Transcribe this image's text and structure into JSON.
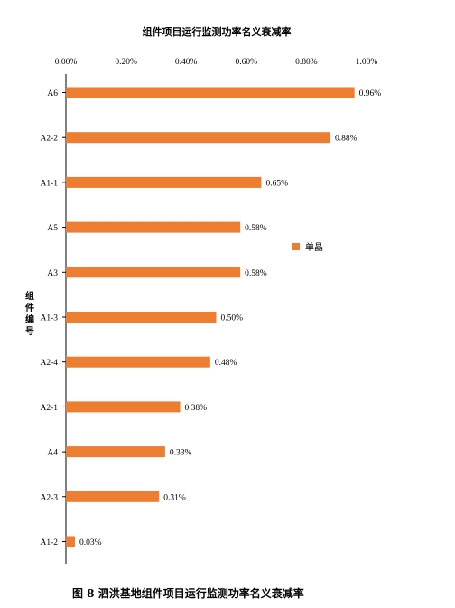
{
  "chart_data": {
    "type": "bar",
    "orientation": "horizontal",
    "title": "组件项目运行监测功率名义衰减率",
    "ylabel": "组件编号",
    "xlabel": "",
    "xlim": [
      0,
      1.0
    ],
    "x_ticks": [
      "0.00%",
      "0.20%",
      "0.40%",
      "0.60%",
      "0.80%",
      "1.00%"
    ],
    "x_axis_position": "top",
    "grid": false,
    "legend_position": "right",
    "bar_color": "#ED7D31",
    "categories": [
      "A6",
      "A2-2",
      "A1-1",
      "A5",
      "A3",
      "A1-3",
      "A2-4",
      "A2-1",
      "A4",
      "A2-3",
      "A1-2"
    ],
    "series": [
      {
        "name": "单晶",
        "values": [
          0.96,
          0.88,
          0.65,
          0.58,
          0.58,
          0.5,
          0.48,
          0.38,
          0.33,
          0.31,
          0.03
        ],
        "labels": [
          "0.96%",
          "0.88%",
          "0.65%",
          "0.58%",
          "0.58%",
          "0.50%",
          "0.48%",
          "0.38%",
          "0.33%",
          "0.31%",
          "0.03%"
        ]
      }
    ]
  },
  "caption": "图 8  泗洪基地组件项目运行监测功率名义衰减率"
}
